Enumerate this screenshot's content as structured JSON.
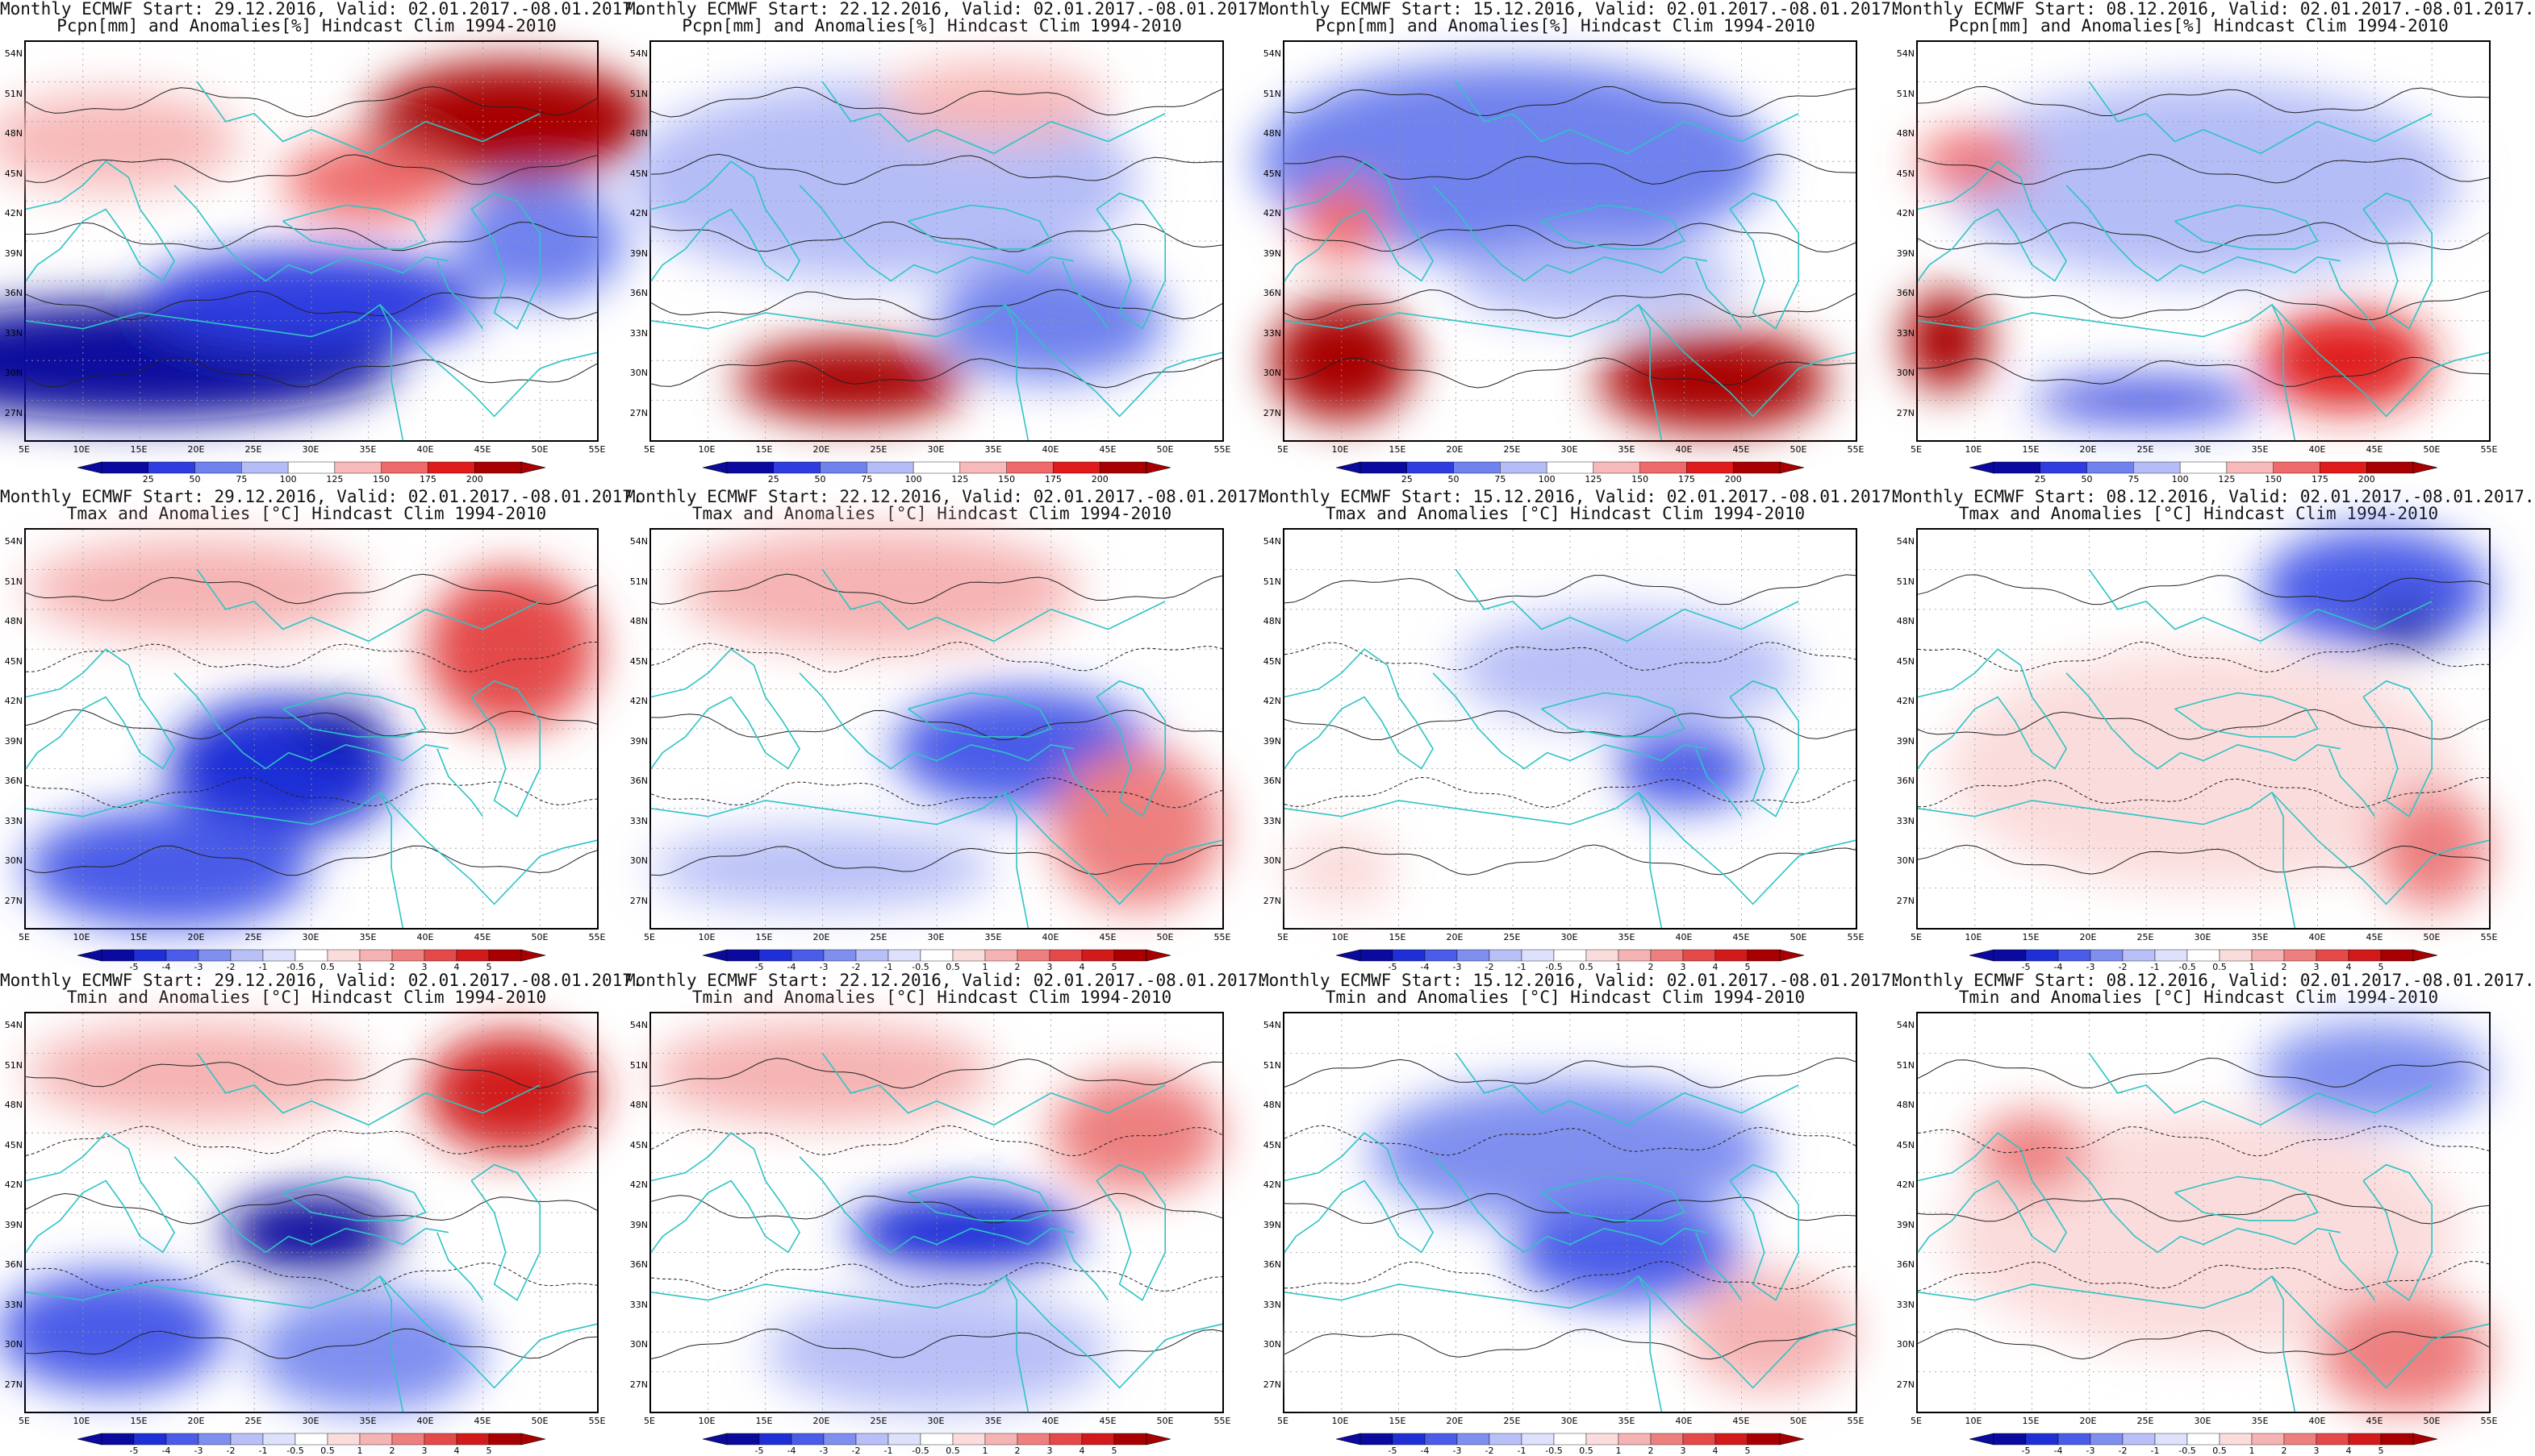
{
  "rows": [
    {
      "line2": "Pcpn[mm] and Anomalies[%] Hindcast Clim 1994-2010",
      "colorbar": [
        "25",
        "50",
        "75",
        "100",
        "125",
        "150",
        "175",
        "200"
      ],
      "kind": "pcpn"
    },
    {
      "line2": "Tmax and Anomalies [°C] Hindcast Clim 1994-2010",
      "colorbar": [
        "-5",
        "-4",
        "-3",
        "-2",
        "-1",
        "-0.5",
        "0.5",
        "1",
        "2",
        "3",
        "4",
        "5"
      ],
      "kind": "temp"
    },
    {
      "line2": "Tmin and Anomalies [°C] Hindcast Clim 1994-2010",
      "colorbar": [
        "-5",
        "-4",
        "-3",
        "-2",
        "-1",
        "-0.5",
        "0.5",
        "1",
        "2",
        "3",
        "4",
        "5"
      ],
      "kind": "temp"
    }
  ],
  "columns": [
    {
      "line1": "Monthly ECMWF Start: 29.12.2016, Valid: 02.01.2017.-08.01.2017."
    },
    {
      "line1": "Monthly ECMWF Start: 22.12.2016, Valid: 02.01.2017.-08.01.2017."
    },
    {
      "line1": "Monthly ECMWF Start: 15.12.2016, Valid: 02.01.2017.-08.01.2017."
    },
    {
      "line1": "Monthly ECMWF Start: 08.12.2016, Valid: 02.01.2017.-08.01.2017."
    }
  ],
  "lat_labels": [
    "54N",
    "51N",
    "48N",
    "45N",
    "42N",
    "39N",
    "36N",
    "33N",
    "30N",
    "27N"
  ],
  "lon_labels": [
    "5E",
    "10E",
    "15E",
    "20E",
    "25E",
    "30E",
    "35E",
    "40E",
    "45E",
    "50E",
    "55E"
  ],
  "colors": {
    "pcpn_scale": [
      "#0a0a9e",
      "#2f3de0",
      "#6f82ee",
      "#b5bdf7",
      "#ffffff",
      "#f7b9b9",
      "#ef6a6a",
      "#e01b1b",
      "#a80000"
    ],
    "temp_scale": [
      "#0a0a9e",
      "#1f2fd6",
      "#4a5ce8",
      "#7f8ff0",
      "#b8c0f7",
      "#dde1fb",
      "#ffffff",
      "#fbdcdc",
      "#f6b3b3",
      "#ee7f7f",
      "#e44a4a",
      "#d21a1a",
      "#a80000"
    ],
    "coast": "#2ec4c4",
    "contour": "#222222"
  },
  "anomaly_patterns": [
    [
      {
        "panel": "0-0",
        "blobs": [
          [
            0.15,
            0.25,
            0.45,
            0.25,
            5
          ],
          [
            0.2,
            0.8,
            0.9,
            0.3,
            0
          ],
          [
            0.5,
            0.65,
            0.6,
            0.25,
            1
          ],
          [
            0.85,
            0.2,
            0.5,
            0.3,
            8
          ],
          [
            0.6,
            0.35,
            0.3,
            0.2,
            6
          ],
          [
            0.9,
            0.5,
            0.3,
            0.3,
            2
          ]
        ]
      },
      {
        "panel": "0-1",
        "blobs": [
          [
            0.4,
            0.35,
            0.9,
            0.5,
            3
          ],
          [
            0.35,
            0.85,
            0.4,
            0.2,
            8
          ],
          [
            0.7,
            0.7,
            0.4,
            0.3,
            2
          ],
          [
            0.6,
            0.15,
            0.4,
            0.2,
            5
          ]
        ]
      },
      {
        "panel": "0-2",
        "blobs": [
          [
            0.4,
            0.3,
            0.9,
            0.5,
            2
          ],
          [
            0.1,
            0.8,
            0.25,
            0.3,
            8
          ],
          [
            0.75,
            0.85,
            0.4,
            0.25,
            8
          ],
          [
            0.1,
            0.45,
            0.15,
            0.2,
            6
          ],
          [
            0.55,
            0.6,
            0.5,
            0.2,
            3
          ]
        ]
      },
      {
        "panel": "0-3",
        "blobs": [
          [
            0.5,
            0.35,
            0.9,
            0.5,
            3
          ],
          [
            0.4,
            0.9,
            0.4,
            0.1,
            1
          ],
          [
            0.75,
            0.8,
            0.3,
            0.25,
            7
          ],
          [
            0.05,
            0.75,
            0.15,
            0.25,
            8
          ],
          [
            0.1,
            0.3,
            0.2,
            0.15,
            6
          ]
        ]
      }
    ],
    [
      {
        "panel": "1-0",
        "blobs": [
          [
            0.45,
            0.6,
            0.4,
            0.35,
            1
          ],
          [
            0.3,
            0.15,
            0.6,
            0.25,
            8
          ],
          [
            0.85,
            0.3,
            0.3,
            0.4,
            10
          ],
          [
            0.25,
            0.85,
            0.5,
            0.3,
            2
          ],
          [
            0.55,
            0.5,
            0.15,
            0.12,
            0
          ]
        ]
      },
      {
        "panel": "1-1",
        "blobs": [
          [
            0.65,
            0.55,
            0.45,
            0.3,
            2
          ],
          [
            0.4,
            0.15,
            0.7,
            0.3,
            8
          ],
          [
            0.85,
            0.75,
            0.3,
            0.4,
            9
          ],
          [
            0.3,
            0.85,
            0.6,
            0.2,
            4
          ]
        ]
      },
      {
        "panel": "1-2",
        "blobs": [
          [
            0.6,
            0.35,
            0.6,
            0.3,
            4
          ],
          [
            0.7,
            0.6,
            0.25,
            0.2,
            2
          ],
          [
            0.3,
            0.7,
            0.5,
            0.4,
            6
          ],
          [
            0.1,
            0.85,
            0.2,
            0.2,
            7
          ]
        ]
      },
      {
        "panel": "1-3",
        "blobs": [
          [
            0.5,
            0.6,
            0.9,
            0.6,
            7
          ],
          [
            0.8,
            0.15,
            0.4,
            0.3,
            2
          ],
          [
            0.85,
            0.25,
            0.15,
            0.1,
            0
          ],
          [
            0.9,
            0.8,
            0.2,
            0.3,
            9
          ]
        ]
      }
    ],
    [
      {
        "panel": "2-0",
        "blobs": [
          [
            0.5,
            0.55,
            0.3,
            0.2,
            0
          ],
          [
            0.15,
            0.8,
            0.4,
            0.3,
            2
          ],
          [
            0.3,
            0.15,
            0.6,
            0.25,
            8
          ],
          [
            0.85,
            0.2,
            0.3,
            0.3,
            11
          ],
          [
            0.6,
            0.85,
            0.4,
            0.3,
            3
          ]
        ]
      },
      {
        "panel": "2-1",
        "blobs": [
          [
            0.55,
            0.55,
            0.4,
            0.2,
            1
          ],
          [
            0.3,
            0.15,
            0.6,
            0.25,
            8
          ],
          [
            0.85,
            0.3,
            0.3,
            0.3,
            9
          ],
          [
            0.5,
            0.85,
            0.6,
            0.3,
            4
          ]
        ]
      },
      {
        "panel": "2-2",
        "blobs": [
          [
            0.5,
            0.35,
            0.7,
            0.35,
            3
          ],
          [
            0.6,
            0.6,
            0.4,
            0.25,
            2
          ],
          [
            0.2,
            0.85,
            0.4,
            0.2,
            6
          ],
          [
            0.85,
            0.8,
            0.3,
            0.3,
            8
          ]
        ]
      },
      {
        "panel": "2-3",
        "blobs": [
          [
            0.5,
            0.55,
            0.9,
            0.6,
            7
          ],
          [
            0.8,
            0.15,
            0.4,
            0.25,
            3
          ],
          [
            0.2,
            0.35,
            0.2,
            0.2,
            9
          ],
          [
            0.85,
            0.85,
            0.3,
            0.3,
            9
          ]
        ]
      }
    ]
  ]
}
